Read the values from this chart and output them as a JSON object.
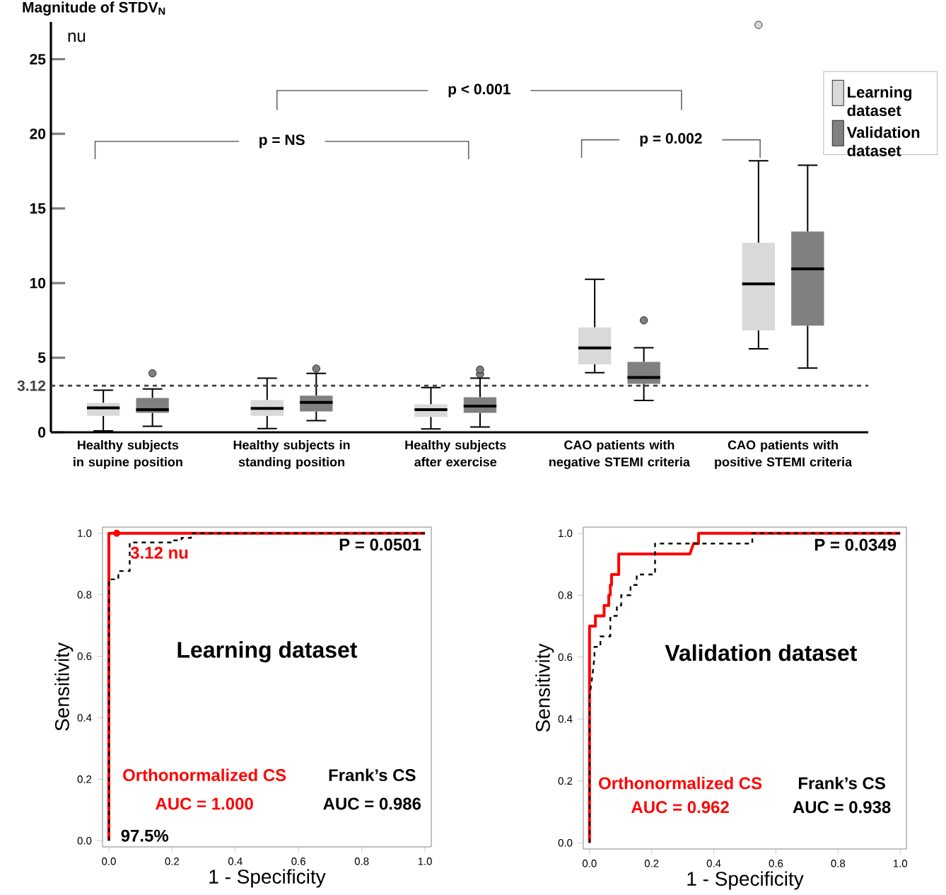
{
  "chart_data": [
    {
      "type": "box",
      "title": "Magnitude of STDV$_{N}$",
      "ylabel": "nu",
      "categories": [
        "Healthy subjects in supine position",
        "Healthy subjects in standing position",
        "Healthy subjects after exercise",
        "CAO patients with negative STEMI criteria",
        "CAO patients with positive STEMI criteria"
      ],
      "series": [
        {
          "name": "Learning dataset",
          "color": "#d9d9d9",
          "boxes": [
            {
              "low": 0.1,
              "q1": 1.1,
              "median": 1.64,
              "q3": 1.97,
              "high": 2.82
            },
            {
              "low": 0.25,
              "q1": 1.1,
              "median": 1.6,
              "q3": 2.16,
              "high": 3.63
            },
            {
              "low": 0.22,
              "q1": 1.03,
              "median": 1.52,
              "q3": 1.87,
              "high": 3.0
            },
            {
              "low": 4.0,
              "q1": 4.55,
              "median": 5.65,
              "q3": 7.03,
              "high": 10.25
            },
            {
              "low": 5.6,
              "q1": 6.83,
              "median": 9.95,
              "q3": 12.7,
              "high": 18.2,
              "outliers": [
                27.3
              ]
            }
          ]
        },
        {
          "name": "Validation dataset",
          "color": "#808080",
          "boxes": [
            {
              "low": 0.4,
              "q1": 1.3,
              "median": 1.52,
              "q3": 2.3,
              "high": 2.9,
              "outliers": [
                3.95
              ]
            },
            {
              "low": 0.78,
              "q1": 1.4,
              "median": 2.0,
              "q3": 2.45,
              "high": 3.95,
              "outliers": [
                4.27
              ]
            },
            {
              "low": 0.36,
              "q1": 1.3,
              "median": 1.75,
              "q3": 2.35,
              "high": 3.63,
              "outliers": [
                3.9,
                4.2
              ]
            },
            {
              "low": 2.13,
              "q1": 3.25,
              "median": 3.68,
              "q3": 4.72,
              "high": 5.67,
              "outliers": [
                7.5
              ]
            },
            {
              "low": 4.3,
              "q1": 7.15,
              "median": 10.95,
              "q3": 13.45,
              "high": 17.9
            }
          ]
        }
      ],
      "ylim": [
        0,
        27.5
      ],
      "yticks": [
        0,
        5,
        10,
        15,
        20,
        25
      ],
      "ref_lines": [
        {
          "axis": "y",
          "value": 3.12,
          "label": "3.12",
          "color": "#404040",
          "line_style": "dashed"
        }
      ],
      "annotations": [
        "p = NS",
        "p < 0.001",
        "p = 0.002"
      ],
      "legend": "top right"
    },
    {
      "type": "line",
      "title": "Learning dataset",
      "xlabel": "1 - Specificity",
      "ylabel": "Sensitivity",
      "series": [
        {
          "name": "Orthonormalized CS",
          "color": "#ff0000",
          "line_style": "solid",
          "x": [
            0,
            0,
            1
          ],
          "values": [
            0,
            1,
            1
          ]
        },
        {
          "name": "Frank’s CS",
          "color": "#000000",
          "line_style": "dashed",
          "x": [
            0,
            0,
            0.03,
            0.03,
            0.066,
            0.066,
            0.2,
            0.2,
            0.23,
            0.23,
            0.26,
            0.26,
            1
          ],
          "values": [
            0,
            0.85,
            0.85,
            0.877,
            0.877,
            0.97,
            0.97,
            0.977,
            0.977,
            0.985,
            0.985,
            1,
            1
          ]
        },
        {
          "type": "scatter",
          "color": "#ff0000",
          "marker": "circle",
          "x": [
            0.025
          ],
          "values": [
            1.0
          ]
        }
      ],
      "xlim": [
        -0.02,
        1.02
      ],
      "ylim": [
        -0.02,
        1.02
      ],
      "xticks": [
        {
          "value": 0,
          "label": "0.0"
        },
        {
          "value": 0.2,
          "label": "0.2"
        },
        {
          "value": 0.4,
          "label": "0.4"
        },
        {
          "value": 0.6,
          "label": "0.6"
        },
        {
          "value": 0.8,
          "label": "0.8"
        },
        {
          "value": 1,
          "label": "1.0"
        }
      ],
      "yticks": [
        {
          "value": 0,
          "label": "0.0"
        },
        {
          "value": 0.2,
          "label": "0.2"
        },
        {
          "value": 0.4,
          "label": "0.4"
        },
        {
          "value": 0.6,
          "label": "0.6"
        },
        {
          "value": 0.8,
          "label": "0.8"
        },
        {
          "value": 1,
          "label": "1.0"
        }
      ],
      "annotations": [
        "P = 0.0501",
        {
          "text": "3.12 nu",
          "x": 0.025,
          "y": 1.0
        },
        "97.5%",
        "AUC = 1.000",
        "AUC = 0.986"
      ]
    },
    {
      "type": "line",
      "title": "Validation dataset",
      "xlabel": "1 - Specificity",
      "ylabel": "Sensitivity",
      "series": [
        {
          "name": "Orthonormalized CS",
          "color": "#ff0000",
          "line_style": "solid",
          "x": [
            0,
            0,
            0.019,
            0.019,
            0.047,
            0.047,
            0.062,
            0.062,
            0.067,
            0.067,
            0.071,
            0.071,
            0.094,
            0.094,
            0.323,
            0.335,
            0.351,
            0.351,
            1
          ],
          "values": [
            0,
            0.7,
            0.7,
            0.733,
            0.733,
            0.767,
            0.767,
            0.8,
            0.8,
            0.833,
            0.833,
            0.867,
            0.867,
            0.933,
            0.933,
            0.967,
            0.967,
            1,
            1
          ]
        },
        {
          "name": "Frank’s CS",
          "color": "#000000",
          "line_style": "dashed",
          "x": [
            0,
            0,
            0.008,
            0.016,
            0.016,
            0.035,
            0.035,
            0.067,
            0.067,
            0.088,
            0.088,
            0.102,
            0.102,
            0.132,
            0.132,
            0.152,
            0.152,
            0.211,
            0.211,
            0.524,
            0.524,
            1
          ],
          "values": [
            0,
            0.47,
            0.53,
            0.6,
            0.633,
            0.633,
            0.667,
            0.667,
            0.733,
            0.733,
            0.767,
            0.767,
            0.8,
            0.8,
            0.833,
            0.833,
            0.867,
            0.867,
            0.967,
            0.967,
            1,
            1
          ]
        }
      ],
      "xlim": [
        -0.02,
        1.02
      ],
      "ylim": [
        -0.02,
        1.02
      ],
      "xticks": [
        {
          "value": 0,
          "label": "0.0"
        },
        {
          "value": 0.2,
          "label": "0.2"
        },
        {
          "value": 0.4,
          "label": "0.4"
        },
        {
          "value": 0.6,
          "label": "0.6"
        },
        {
          "value": 0.8,
          "label": "0.8"
        },
        {
          "value": 1,
          "label": "1.0"
        }
      ],
      "yticks": [
        {
          "value": 0,
          "label": "0.0"
        },
        {
          "value": 0.2,
          "label": "0.2"
        },
        {
          "value": 0.4,
          "label": "0.4"
        },
        {
          "value": 0.6,
          "label": "0.6"
        },
        {
          "value": 0.8,
          "label": "0.8"
        },
        {
          "value": 1,
          "label": "1.0"
        }
      ],
      "annotations": [
        "P = 0.0349",
        "AUC = 0.962",
        "AUC = 0.938"
      ]
    }
  ]
}
